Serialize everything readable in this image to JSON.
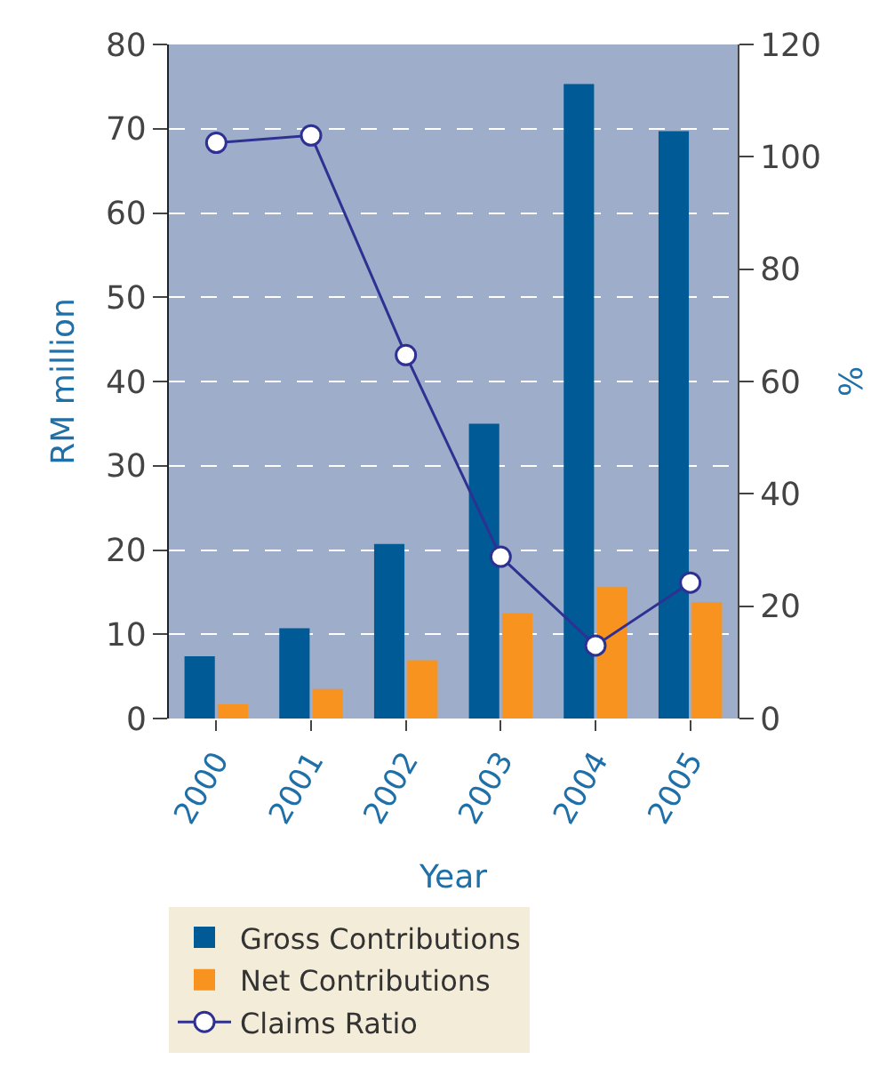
{
  "chart_data": {
    "type": "bar",
    "categories": [
      "2000",
      "2001",
      "2002",
      "2003",
      "2004",
      "2005"
    ],
    "xlabel": "Year",
    "ylabel": "RM million",
    "y2label": "%",
    "series": [
      {
        "name": "Gross Contributions",
        "color": "#005a96",
        "values": [
          7.4,
          10.7,
          20.7,
          35,
          75.3,
          69.7
        ]
      },
      {
        "name": "Net Contributions",
        "color": "#f7931e",
        "values": [
          1.7,
          3.5,
          6.9,
          12.5,
          15.6,
          13.8
        ]
      },
      {
        "name": "Claims Ratio",
        "type": "line",
        "axis": "y2",
        "color": "#2e3192",
        "marker": "circle",
        "values": [
          102.5,
          103.8,
          64.7,
          28.8,
          13,
          24.2
        ]
      }
    ],
    "ylim": [
      0,
      80
    ],
    "yticks": [
      0,
      10,
      20,
      30,
      40,
      50,
      60,
      70,
      80
    ],
    "y2lim": [
      0,
      120
    ],
    "y2ticks": [
      0,
      20,
      40,
      60,
      80,
      100,
      120
    ],
    "grid": "y",
    "legend": "bottom"
  }
}
